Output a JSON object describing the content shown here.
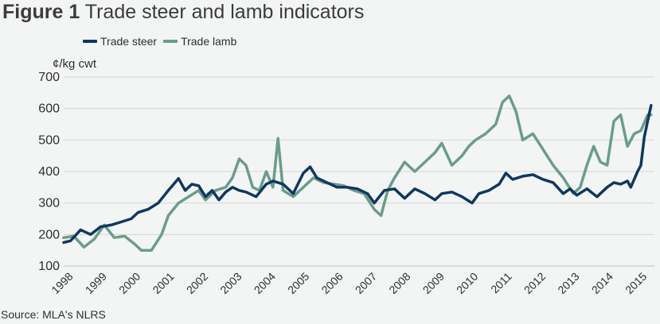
{
  "title": {
    "prefix": "Figure 1",
    "text": "Trade steer and lamb indicators"
  },
  "legend": [
    {
      "name": "Trade steer",
      "color": "#10385e"
    },
    {
      "name": "Trade lamb",
      "color": "#6a9d8a"
    }
  ],
  "source": "Source: MLA's NLRS",
  "chart_data": {
    "type": "line",
    "ylabel": "¢/kg cwt",
    "xlabel": "",
    "ylim": [
      100,
      700
    ],
    "yticks": [
      100,
      200,
      300,
      400,
      500,
      600,
      700
    ],
    "xticks": [
      "1998",
      "1999",
      "2000",
      "2001",
      "2002",
      "2003",
      "2004",
      "2005",
      "2006",
      "2007",
      "2008",
      "2009",
      "2010",
      "2011",
      "2012",
      "2013",
      "2014",
      "2015"
    ],
    "xlim": [
      1997.8,
      2015.3
    ],
    "grid": true,
    "legend_position": "top-left",
    "series": [
      {
        "name": "Trade steer",
        "color": "#10385e",
        "x": [
          1997.8,
          1998.0,
          1998.3,
          1998.6,
          1998.9,
          1999.2,
          1999.5,
          1999.8,
          2000.0,
          2000.3,
          2000.6,
          2000.9,
          2001.1,
          2001.2,
          2001.4,
          2001.6,
          2001.8,
          2002.0,
          2002.2,
          2002.4,
          2002.6,
          2002.8,
          2003.0,
          2003.2,
          2003.5,
          2003.8,
          2004.0,
          2004.3,
          2004.6,
          2004.9,
          2005.1,
          2005.3,
          2005.6,
          2005.9,
          2006.2,
          2006.5,
          2006.8,
          2007.0,
          2007.3,
          2007.6,
          2007.9,
          2008.2,
          2008.5,
          2008.8,
          2009.0,
          2009.3,
          2009.6,
          2009.9,
          2010.1,
          2010.4,
          2010.7,
          2010.9,
          2011.1,
          2011.4,
          2011.7,
          2012.0,
          2012.3,
          2012.6,
          2012.8,
          2013.0,
          2013.3,
          2013.6,
          2013.9,
          2014.1,
          2014.3,
          2014.5,
          2014.6,
          2014.8,
          2014.9,
          2015.0,
          2015.1,
          2015.2
        ],
        "values": [
          175,
          180,
          215,
          200,
          225,
          230,
          240,
          250,
          270,
          280,
          300,
          340,
          365,
          378,
          340,
          360,
          355,
          320,
          340,
          310,
          335,
          350,
          340,
          335,
          320,
          360,
          370,
          360,
          330,
          395,
          415,
          380,
          365,
          350,
          350,
          345,
          330,
          300,
          340,
          345,
          315,
          345,
          330,
          310,
          330,
          335,
          320,
          300,
          330,
          340,
          360,
          395,
          375,
          385,
          390,
          375,
          365,
          330,
          345,
          325,
          345,
          320,
          350,
          365,
          360,
          370,
          350,
          400,
          420,
          510,
          560,
          610
        ]
      },
      {
        "name": "Trade lamb",
        "color": "#6a9d8a",
        "x": [
          1997.8,
          1998.1,
          1998.4,
          1998.7,
          1999.0,
          1999.3,
          1999.6,
          1999.9,
          2000.1,
          2000.4,
          2000.7,
          2000.9,
          2001.2,
          2001.5,
          2001.8,
          2002.0,
          2002.3,
          2002.6,
          2002.8,
          2003.0,
          2003.2,
          2003.4,
          2003.6,
          2003.8,
          2004.0,
          2004.15,
          2004.3,
          2004.6,
          2004.9,
          2005.2,
          2005.5,
          2005.8,
          2006.1,
          2006.4,
          2006.7,
          2007.0,
          2007.2,
          2007.4,
          2007.6,
          2007.9,
          2008.2,
          2008.4,
          2008.6,
          2008.8,
          2009.0,
          2009.3,
          2009.6,
          2009.8,
          2010.0,
          2010.3,
          2010.6,
          2010.8,
          2011.0,
          2011.2,
          2011.4,
          2011.7,
          2012.0,
          2012.3,
          2012.6,
          2012.9,
          2013.1,
          2013.3,
          2013.5,
          2013.7,
          2013.9,
          2014.1,
          2014.3,
          2014.5,
          2014.7,
          2014.9,
          2015.1,
          2015.2
        ],
        "values": [
          190,
          195,
          160,
          185,
          230,
          190,
          195,
          170,
          150,
          150,
          200,
          260,
          300,
          320,
          340,
          310,
          340,
          350,
          380,
          440,
          420,
          350,
          340,
          400,
          350,
          505,
          340,
          320,
          350,
          380,
          365,
          360,
          355,
          340,
          330,
          280,
          260,
          340,
          380,
          430,
          400,
          420,
          440,
          460,
          490,
          420,
          450,
          480,
          500,
          520,
          550,
          620,
          640,
          590,
          500,
          520,
          470,
          420,
          380,
          330,
          350,
          420,
          480,
          430,
          420,
          560,
          580,
          480,
          520,
          530,
          580,
          580
        ]
      }
    ]
  }
}
